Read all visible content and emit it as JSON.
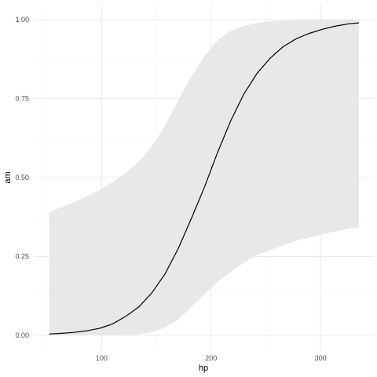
{
  "chart_data": {
    "type": "line",
    "xlabel": "hp",
    "ylabel": "am",
    "xlim": [
      38,
      348
    ],
    "ylim": [
      -0.05,
      1.05
    ],
    "x_ticks": [
      100,
      200,
      300
    ],
    "x_tick_labels": [
      "100",
      "200",
      "300"
    ],
    "y_ticks": [
      0,
      0.25,
      0.5,
      0.75,
      1
    ],
    "y_tick_labels": [
      "0.00",
      "0.25",
      "0.50",
      "0.75",
      "1.00"
    ],
    "grid": true,
    "legend": "none",
    "series": [
      {
        "x": [
          52,
          62,
          74,
          86,
          98,
          110,
          122,
          134,
          146,
          158,
          170,
          182,
          194,
          206,
          218,
          230,
          242,
          254,
          266,
          278,
          290,
          302,
          314,
          326,
          335
        ],
        "y": [
          0.004,
          0.006,
          0.009,
          0.014,
          0.022,
          0.036,
          0.06,
          0.09,
          0.135,
          0.195,
          0.275,
          0.37,
          0.47,
          0.58,
          0.68,
          0.765,
          0.83,
          0.878,
          0.915,
          0.94,
          0.957,
          0.97,
          0.98,
          0.987,
          0.99
        ],
        "ci_lower": [
          0.0,
          0.0,
          0.0,
          0.0,
          0.0,
          0.0,
          0.0,
          0.003,
          0.01,
          0.025,
          0.05,
          0.09,
          0.13,
          0.17,
          0.2,
          0.23,
          0.255,
          0.27,
          0.285,
          0.3,
          0.31,
          0.32,
          0.33,
          0.338,
          0.343
        ],
        "ci_upper": [
          0.39,
          0.405,
          0.42,
          0.44,
          0.46,
          0.485,
          0.515,
          0.55,
          0.6,
          0.665,
          0.745,
          0.82,
          0.885,
          0.935,
          0.965,
          0.98,
          0.99,
          0.995,
          0.998,
          0.999,
          1.0,
          1.0,
          1.0,
          1.0,
          1.0
        ]
      }
    ],
    "colors": {
      "line": "#000000",
      "ribbon": "#e8e8e8",
      "grid_major": "#ebebeb",
      "grid_minor": "#f5f5f5"
    }
  }
}
